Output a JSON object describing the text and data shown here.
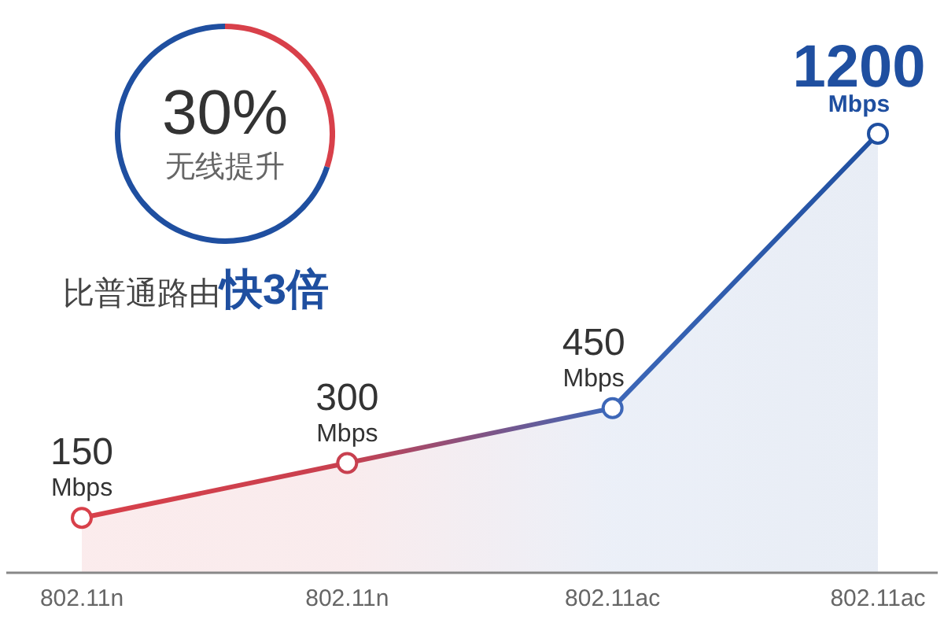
{
  "chart_data": [
    {
      "type": "donut",
      "categories": [
        null,
        null
      ],
      "values": [
        30,
        70
      ],
      "colors": [
        "#d8404a",
        "#1f4fa0"
      ],
      "legend": false,
      "annotations": [
        "30%",
        "无线提升",
        "比普通路由",
        "快3倍"
      ]
    },
    {
      "type": "area",
      "categories": [
        "802.11n",
        "802.11n",
        "802.11ac",
        "802.11ac"
      ],
      "values": [
        150,
        300,
        450,
        1200
      ],
      "colors": [
        "#d8404a",
        "#c8404f",
        "#3d67b8",
        "#1f4fa0"
      ],
      "marker": "circle",
      "grid": false,
      "legend": false,
      "value_labels": [
        "150 Mbps",
        "300 Mbps",
        "450 Mbps",
        "1200 Mbps"
      ]
    }
  ]
}
